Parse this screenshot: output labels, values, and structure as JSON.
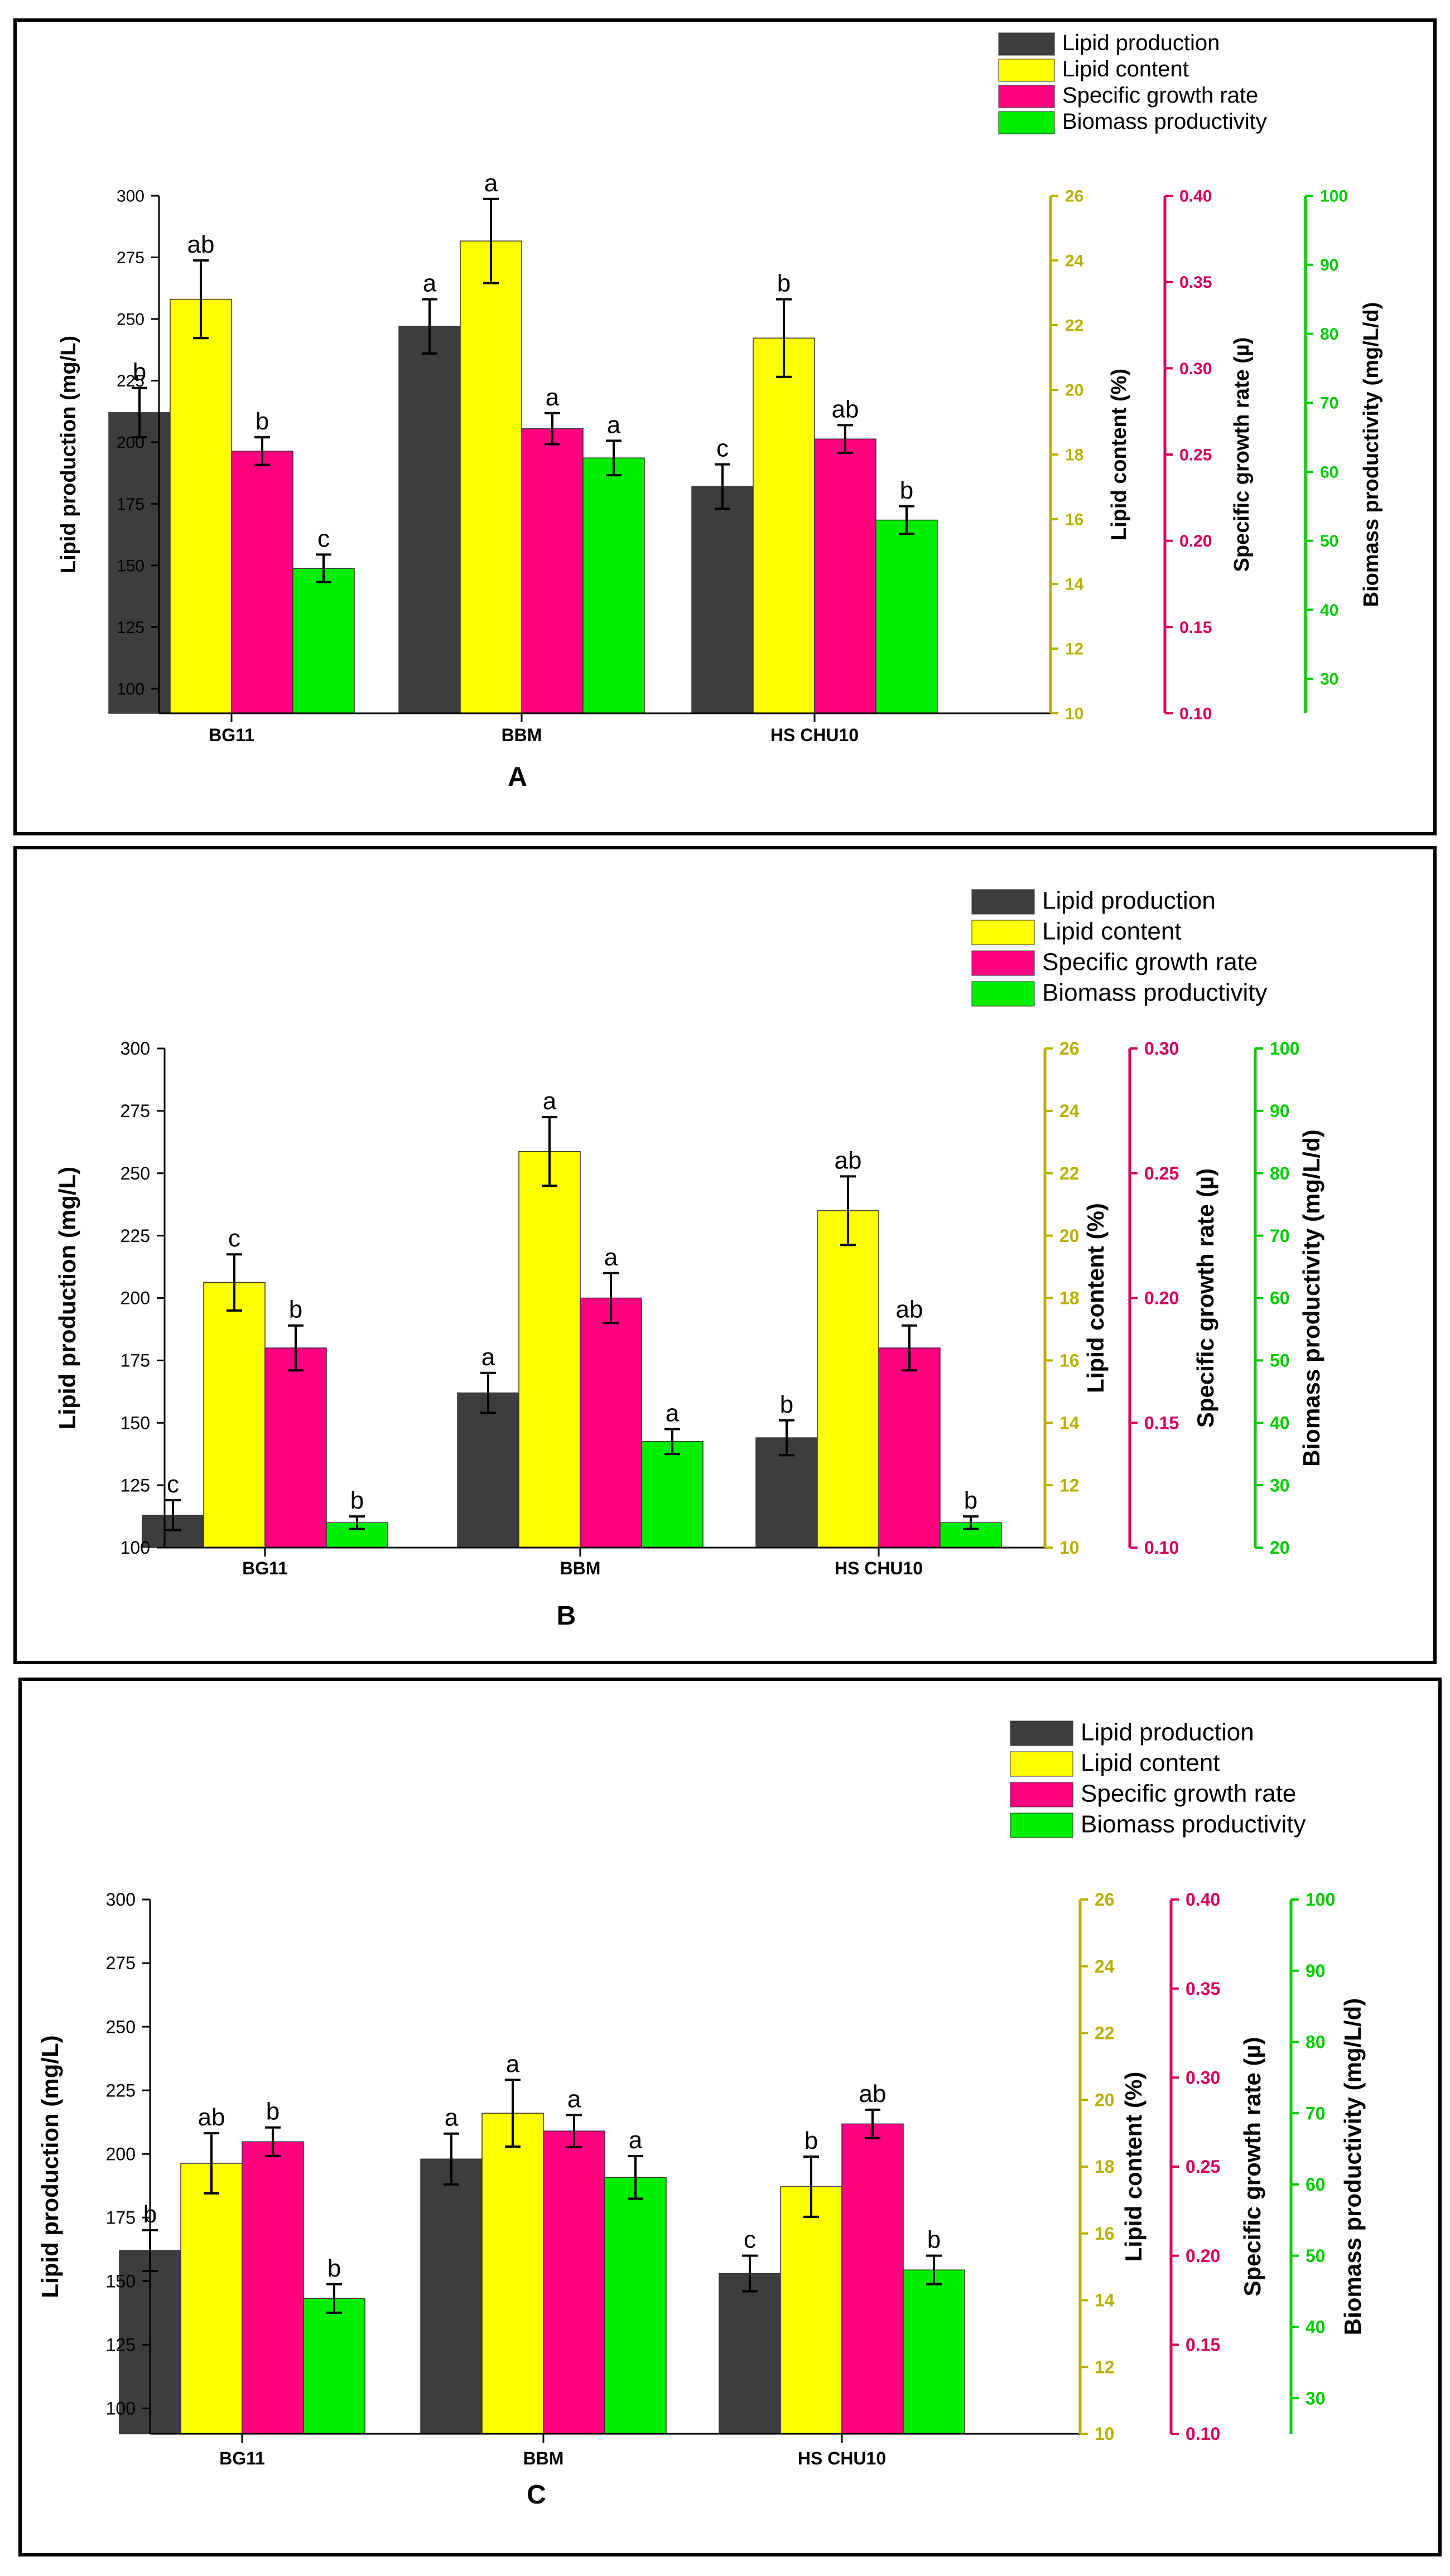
{
  "colors": {
    "lipid_production": "#3d3d3d",
    "lipid_content": "#ffff00",
    "specific_growth_rate": "#ff0080",
    "biomass_productivity": "#00ee00",
    "axis_lipid_content": "#b8b000",
    "axis_growth_rate": "#d6005a",
    "axis_biomass": "#00cc00"
  },
  "chart_data": [
    {
      "panel_label": "A",
      "type": "bar",
      "categories": [
        "BG11",
        "BBM",
        "HS CHU10"
      ],
      "legend": [
        "Lipid production",
        "Lipid content",
        "Specific growth rate",
        "Biomass productivity"
      ],
      "axes": {
        "left": {
          "label": "Lipid production (mg/L)",
          "ylim": [
            90,
            300
          ],
          "ticks": [
            "100",
            "125",
            "150",
            "175",
            "200",
            "225",
            "250",
            "275",
            "300"
          ]
        },
        "right1": {
          "label": "Lipid content (%)",
          "ylim": [
            10,
            26
          ],
          "ticks": [
            "10",
            "12",
            "14",
            "16",
            "18",
            "20",
            "22",
            "24",
            "26"
          ]
        },
        "right2": {
          "label": "Specific growth rate (µ)",
          "ylim": [
            0.1,
            0.4
          ],
          "ticks": [
            "0.10",
            "0.15",
            "0.20",
            "0.25",
            "0.30",
            "0.35",
            "0.40"
          ]
        },
        "right3": {
          "label": "Biomass productivity (mg/L/d)",
          "ylim": [
            25,
            100
          ],
          "ticks": [
            "30",
            "40",
            "50",
            "60",
            "70",
            "80",
            "90",
            "100"
          ]
        }
      },
      "series": [
        {
          "name": "Lipid production",
          "values": [
            212,
            247,
            182
          ],
          "errors": [
            10,
            11,
            9
          ],
          "letters": [
            "b",
            "a",
            "c"
          ]
        },
        {
          "name": "Lipid content",
          "values": [
            22.8,
            24.6,
            21.6
          ],
          "errors": [
            1.2,
            1.3,
            1.2
          ],
          "letters": [
            "ab",
            "a",
            "b"
          ]
        },
        {
          "name": "Specific growth rate",
          "values": [
            0.252,
            0.265,
            0.259
          ],
          "errors": [
            0.008,
            0.009,
            0.008
          ],
          "letters": [
            "b",
            "a",
            "ab"
          ]
        },
        {
          "name": "Biomass productivity",
          "values": [
            46,
            62,
            53
          ],
          "errors": [
            2,
            2.5,
            2
          ],
          "letters": [
            "c",
            "a",
            "b"
          ]
        }
      ]
    },
    {
      "panel_label": "B",
      "type": "bar",
      "categories": [
        "BG11",
        "BBM",
        "HS CHU10"
      ],
      "legend": [
        "Lipid production",
        "Lipid content",
        "Specific growth rate",
        "Biomass productivity"
      ],
      "axes": {
        "left": {
          "label": "Lipid production (mg/L)",
          "ylim": [
            100,
            300
          ],
          "ticks": [
            "100",
            "125",
            "150",
            "175",
            "200",
            "225",
            "250",
            "275",
            "300"
          ]
        },
        "right1": {
          "label": "Lipid content (%)",
          "ylim": [
            10,
            26
          ],
          "ticks": [
            "10",
            "12",
            "14",
            "16",
            "18",
            "20",
            "22",
            "24",
            "26"
          ]
        },
        "right2": {
          "label": "Specific growth rate (µ)",
          "ylim": [
            0.1,
            0.3
          ],
          "ticks": [
            "0.10",
            "0.15",
            "0.20",
            "0.25",
            "0.30"
          ]
        },
        "right3": {
          "label": "Biomass productivity (mg/L/d)",
          "ylim": [
            20,
            100
          ],
          "ticks": [
            "20",
            "30",
            "40",
            "50",
            "60",
            "70",
            "80",
            "90",
            "100"
          ]
        }
      },
      "series": [
        {
          "name": "Lipid production",
          "values": [
            113,
            162,
            144
          ],
          "errors": [
            6,
            8,
            7
          ],
          "letters": [
            "c",
            "a",
            "b"
          ]
        },
        {
          "name": "Lipid content",
          "values": [
            18.5,
            22.7,
            20.8
          ],
          "errors": [
            0.9,
            1.1,
            1.1
          ],
          "letters": [
            "c",
            "a",
            "ab"
          ]
        },
        {
          "name": "Specific growth rate",
          "values": [
            0.18,
            0.2,
            0.18
          ],
          "errors": [
            0.009,
            0.01,
            0.009
          ],
          "letters": [
            "b",
            "a",
            "ab"
          ]
        },
        {
          "name": "Biomass productivity",
          "values": [
            24,
            37,
            24
          ],
          "errors": [
            1,
            2,
            1
          ],
          "letters": [
            "b",
            "a",
            "b"
          ]
        }
      ]
    },
    {
      "panel_label": "C",
      "type": "bar",
      "categories": [
        "BG11",
        "BBM",
        "HS CHU10"
      ],
      "legend": [
        "Lipid production",
        "Lipid content",
        "Specific growth rate",
        "Biomass productivity"
      ],
      "axes": {
        "left": {
          "label": "Lipid production (mg/L)",
          "ylim": [
            90,
            300
          ],
          "ticks": [
            "100",
            "125",
            "150",
            "175",
            "200",
            "225",
            "250",
            "275",
            "300"
          ]
        },
        "right1": {
          "label": "Lipid content (%)",
          "ylim": [
            10,
            26
          ],
          "ticks": [
            "10",
            "12",
            "14",
            "16",
            "18",
            "20",
            "22",
            "24",
            "26"
          ]
        },
        "right2": {
          "label": "Specific growth rate (µ)",
          "ylim": [
            0.1,
            0.4
          ],
          "ticks": [
            "0.10",
            "0.15",
            "0.20",
            "0.25",
            "0.30",
            "0.35",
            "0.40"
          ]
        },
        "right3": {
          "label": "Biomass productivity (mg/L/d)",
          "ylim": [
            25,
            100
          ],
          "ticks": [
            "30",
            "40",
            "50",
            "60",
            "70",
            "80",
            "90",
            "100"
          ]
        }
      },
      "series": [
        {
          "name": "Lipid production",
          "values": [
            162,
            198,
            153
          ],
          "errors": [
            8,
            10,
            7
          ],
          "letters": [
            "b",
            "a",
            "c"
          ]
        },
        {
          "name": "Lipid content",
          "values": [
            18.1,
            19.6,
            17.4
          ],
          "errors": [
            0.9,
            1.0,
            0.9
          ],
          "letters": [
            "ab",
            "a",
            "b"
          ]
        },
        {
          "name": "Specific growth rate",
          "values": [
            0.264,
            0.27,
            0.274
          ],
          "errors": [
            0.008,
            0.009,
            0.008
          ],
          "letters": [
            "b",
            "a",
            "ab"
          ]
        },
        {
          "name": "Biomass productivity",
          "values": [
            44,
            61,
            48
          ],
          "errors": [
            2,
            3,
            2
          ],
          "letters": [
            "b",
            "a",
            "b"
          ]
        }
      ]
    }
  ]
}
